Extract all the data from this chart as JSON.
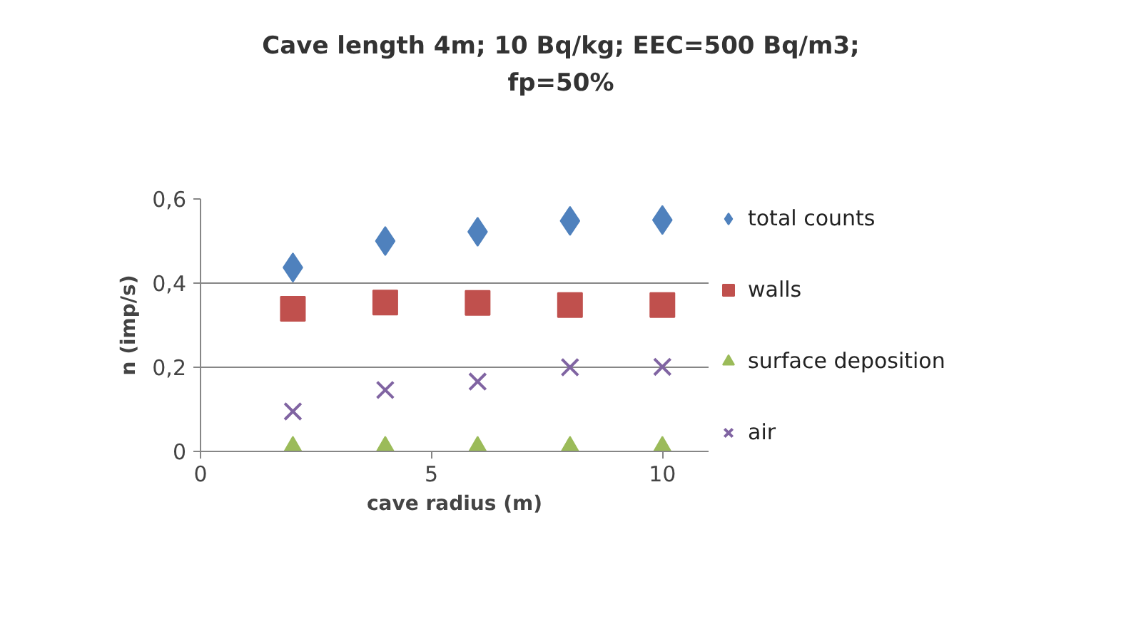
{
  "chart_data": {
    "type": "scatter",
    "title": "Cave length 4m; 10 Bq/kg; EEC=500 Bq/m3; fp=50%",
    "xlabel": "cave radius (m)",
    "ylabel": "n (imp/s)",
    "x": [
      2,
      4,
      6,
      8,
      10
    ],
    "series": [
      {
        "name": "total counts",
        "color": "#4f81bd",
        "marker": "diamond",
        "values": [
          0.437,
          0.5,
          0.522,
          0.548,
          0.55
        ]
      },
      {
        "name": "walls",
        "color": "#c0504d",
        "marker": "square",
        "values": [
          0.339,
          0.354,
          0.353,
          0.348,
          0.348
        ]
      },
      {
        "name": "surface deposition",
        "color": "#9bbb59",
        "marker": "triangle",
        "values": [
          0.0,
          0.0,
          0.0,
          0.0,
          0.0
        ]
      },
      {
        "name": "air",
        "color": "#8064a2",
        "marker": "cross",
        "values": [
          0.095,
          0.146,
          0.166,
          0.2,
          0.201
        ]
      }
    ],
    "xlim": [
      0,
      11
    ],
    "xticks": [
      0,
      5,
      10
    ],
    "ylim": [
      0,
      0.6
    ],
    "yticks": [
      0,
      {
        "value": 0.2,
        "label": "0,2"
      },
      {
        "value": 0.4,
        "label": "0,4"
      },
      {
        "value": 0.6,
        "label": "0,6"
      }
    ],
    "grid": "y",
    "legend": "right"
  }
}
